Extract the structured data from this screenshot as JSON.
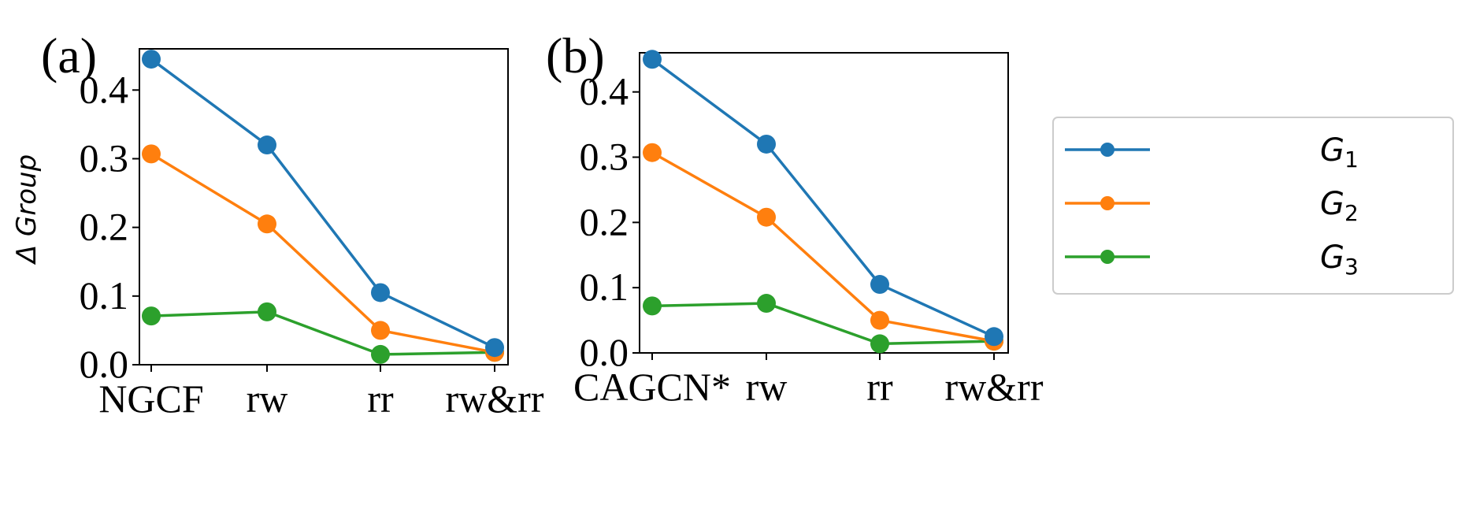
{
  "colors": {
    "G1": "#1f77b4",
    "G2": "#ff7f0e",
    "G3": "#2ca02c"
  },
  "legend": [
    {
      "base": "G",
      "sub": "1",
      "color_key": "G1"
    },
    {
      "base": "G",
      "sub": "2",
      "color_key": "G2"
    },
    {
      "base": "G",
      "sub": "3",
      "color_key": "G3"
    }
  ],
  "chart_data": [
    {
      "type": "line",
      "panel_label": "(a)",
      "ylabel": "Δ Group",
      "categories": [
        "NGCF",
        "rw",
        "rr",
        "rw&rr"
      ],
      "ylim": [
        0,
        0.46
      ],
      "yticks": [
        "0.0",
        "0.1",
        "0.2",
        "0.3",
        "0.4"
      ],
      "grid": false,
      "series": [
        {
          "name": "G1",
          "values": [
            0.445,
            0.32,
            0.105,
            0.025
          ]
        },
        {
          "name": "G2",
          "values": [
            0.307,
            0.205,
            0.05,
            0.018
          ]
        },
        {
          "name": "G3",
          "values": [
            0.071,
            0.077,
            0.015,
            0.018
          ]
        }
      ]
    },
    {
      "type": "line",
      "panel_label": "(b)",
      "ylabel": "",
      "categories": [
        "CAGCN*",
        "rw",
        "rr",
        "rw&rr"
      ],
      "ylim": [
        0,
        0.46
      ],
      "yticks": [
        "0.0",
        "0.1",
        "0.2",
        "0.3",
        "0.4"
      ],
      "grid": false,
      "series": [
        {
          "name": "G1",
          "values": [
            0.45,
            0.32,
            0.105,
            0.025
          ]
        },
        {
          "name": "G2",
          "values": [
            0.307,
            0.208,
            0.05,
            0.018
          ]
        },
        {
          "name": "G3",
          "values": [
            0.072,
            0.076,
            0.014,
            0.018
          ]
        }
      ]
    }
  ]
}
